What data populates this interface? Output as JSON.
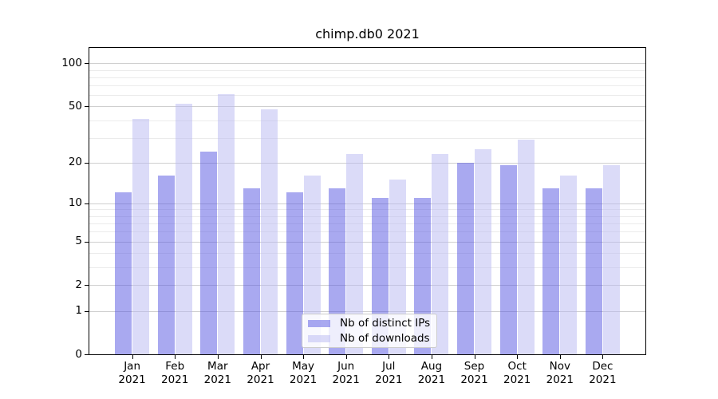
{
  "figure": {
    "background": "#ffffff"
  },
  "chart_data": {
    "type": "bar",
    "title": "chimp.db0 2021",
    "categories": [
      "Jan 2021",
      "Feb 2021",
      "Mar 2021",
      "Apr 2021",
      "May 2021",
      "Jun 2021",
      "Jul 2021",
      "Aug 2021",
      "Sep 2021",
      "Oct 2021",
      "Nov 2021",
      "Dec 2021"
    ],
    "series": [
      {
        "name": "Nb of distinct IPs",
        "color": "rgba(83,83,225,0.5)",
        "values": [
          12,
          16,
          24,
          13,
          12,
          13,
          11,
          11,
          20,
          19,
          13,
          13
        ]
      },
      {
        "name": "Nb of downloads",
        "color": "rgba(183,183,241,0.5)",
        "values": [
          41,
          52,
          61,
          48,
          16,
          23,
          15,
          23,
          25,
          29,
          16,
          19
        ]
      }
    ],
    "xlabel": "",
    "ylabel": "",
    "yscale": "log1p",
    "ylim": [
      0,
      127
    ],
    "y_major_ticks": [
      0,
      1,
      2,
      5,
      10,
      20,
      50,
      100
    ],
    "y_minor_gridlines": [
      3,
      4,
      6,
      7,
      8,
      9,
      30,
      40,
      60,
      70,
      80,
      90
    ],
    "grid": true,
    "legend_position": "lower center"
  },
  "legend": {
    "items": [
      {
        "label": "Nb of distinct IPs",
        "swatch_color": "rgba(83,83,225,0.5)"
      },
      {
        "label": "Nb of downloads",
        "swatch_color": "rgba(183,183,241,0.5)"
      }
    ]
  },
  "colors": {
    "bar_dark_composited": "#a9a9f0",
    "bar_light_composited": "#dbdbf8",
    "major_grid": "#cfcfcf",
    "minor_grid": "#ebebeb",
    "spine": "#000000",
    "text": "#000000",
    "legend_border": "#cccccc",
    "legend_bg": "rgba(255,255,255,0.8)"
  }
}
